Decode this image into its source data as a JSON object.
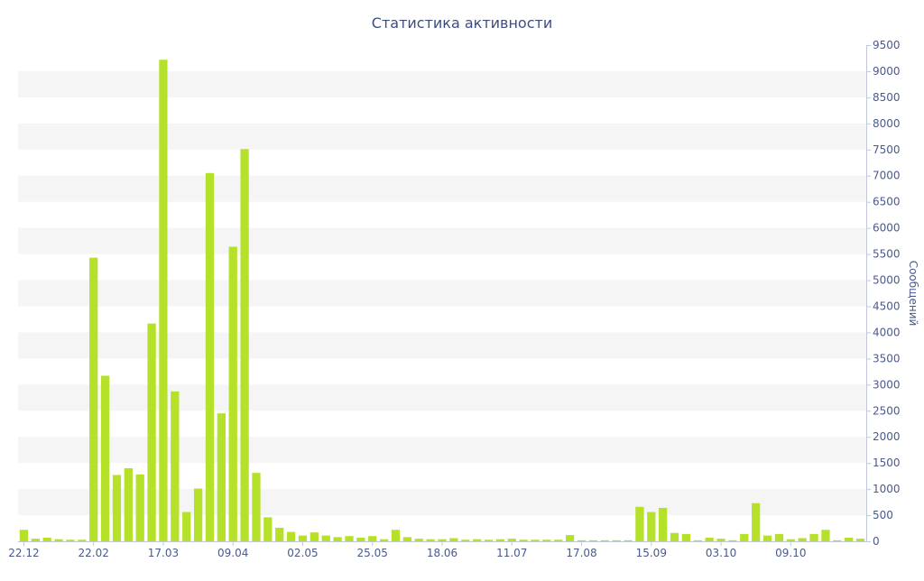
{
  "chart_data": {
    "type": "bar",
    "title": "Статистика активности",
    "xlabel": "",
    "ylabel": "Сообщений",
    "ylim": [
      0,
      9500
    ],
    "y_ticks": [
      0,
      500,
      1000,
      1500,
      2000,
      2500,
      3000,
      3500,
      4000,
      4500,
      5000,
      5500,
      6000,
      6500,
      7000,
      7500,
      8000,
      8500,
      9000,
      9500
    ],
    "x_tick_labels": [
      {
        "label": "22.12",
        "index": 0
      },
      {
        "label": "22.02",
        "index": 6
      },
      {
        "label": "17.03",
        "index": 12
      },
      {
        "label": "09.04",
        "index": 18
      },
      {
        "label": "02.05",
        "index": 24
      },
      {
        "label": "25.05",
        "index": 30
      },
      {
        "label": "18.06",
        "index": 36
      },
      {
        "label": "11.07",
        "index": 42
      },
      {
        "label": "17.08",
        "index": 48
      },
      {
        "label": "15.09",
        "index": 54
      },
      {
        "label": "03.10",
        "index": 60
      },
      {
        "label": "09.10",
        "index": 66
      }
    ],
    "values": [
      220,
      50,
      70,
      40,
      30,
      30,
      5430,
      3170,
      1270,
      1400,
      1280,
      4170,
      9220,
      2870,
      560,
      1010,
      7050,
      2450,
      5640,
      7510,
      1310,
      460,
      260,
      180,
      110,
      170,
      110,
      80,
      100,
      70,
      100,
      40,
      220,
      80,
      50,
      40,
      40,
      60,
      30,
      40,
      30,
      40,
      50,
      30,
      30,
      30,
      30,
      120,
      20,
      20,
      20,
      20,
      20,
      660,
      560,
      640,
      160,
      140,
      20,
      70,
      50,
      20,
      140,
      730,
      110,
      140,
      40,
      60,
      140,
      220,
      20,
      70,
      50
    ],
    "grid": "horizontal alternating bands",
    "y_axis_side": "right",
    "colors": {
      "bar": "#b5e12a",
      "band": "#f5f5f5",
      "axis_text": "#4a5a8a",
      "title": "#3d4d80"
    }
  }
}
